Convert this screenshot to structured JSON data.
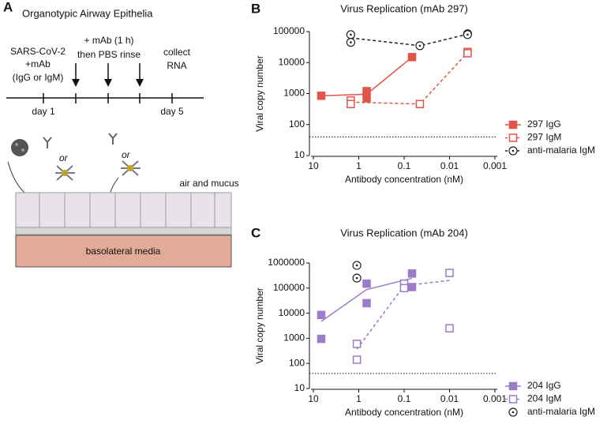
{
  "panel_a": {
    "letter": "A",
    "title": "Organotypic Airway Epithelia",
    "infection": [
      "SARS-CoV-2",
      "+mAb",
      "(IgG or IgM)"
    ],
    "treatment": [
      "+ mAb (1 h)",
      "then PBS rinse"
    ],
    "collect": [
      "collect",
      "RNA"
    ],
    "day_start": "day 1",
    "day_end": "day 5",
    "or": "or",
    "air": "air and mucus",
    "media": "basolateral media"
  },
  "chart_data": [
    {
      "type": "scatter",
      "letter": "B",
      "title": "Virus Replication (mAb 297)",
      "xlabel": "Antibody concentration (nM)",
      "ylabel": "Viral copy number",
      "log_x": true,
      "log_y": true,
      "xlim": [
        10,
        0.001
      ],
      "ylim": [
        10,
        100000
      ],
      "xticks": [
        10,
        1,
        0.1,
        0.01,
        0.001
      ],
      "yticks": [
        10,
        100,
        1000,
        10000,
        100000
      ],
      "reference_line": 40,
      "series": [
        {
          "name": "297 IgG",
          "color": "#e0554a",
          "marker": "square",
          "filled": true,
          "line": "solid",
          "x": [
            6.7,
            0.67,
            0.67,
            0.067
          ],
          "values": [
            850,
            1200,
            700,
            15000
          ]
        },
        {
          "name": "297 IgM",
          "color": "#e0554a",
          "marker": "square",
          "filled": false,
          "line": "dashed",
          "x": [
            1.5,
            1.5,
            0.045,
            0.004,
            0.004
          ],
          "values": [
            600,
            460,
            460,
            22000,
            20000
          ]
        },
        {
          "name": "anti-malaria IgM",
          "color": "#222222",
          "marker": "circle-dot",
          "filled": false,
          "line": "dashed",
          "x": [
            1.5,
            1.5,
            0.045,
            0.004,
            0.004
          ],
          "values": [
            80000,
            45000,
            35000,
            85000,
            80000
          ]
        }
      ]
    },
    {
      "type": "scatter",
      "letter": "C",
      "title": "Virus Replication (mAb 204)",
      "xlabel": "Antibody concentration (nM)",
      "ylabel": "Viral copy number",
      "log_x": true,
      "log_y": true,
      "xlim": [
        10,
        0.001
      ],
      "ylim": [
        10,
        1000000
      ],
      "xticks": [
        10,
        1,
        0.1,
        0.01,
        0.001
      ],
      "yticks": [
        10,
        100,
        1000,
        10000,
        100000,
        1000000
      ],
      "reference_line": 40,
      "series": [
        {
          "name": "204 IgG",
          "color": "#9a7cc8",
          "marker": "square",
          "filled": true,
          "line": "solid",
          "x": [
            6.7,
            6.7,
            0.67,
            0.67,
            0.067,
            0.067
          ],
          "values": [
            8500,
            950,
            150000,
            25000,
            380000,
            110000
          ]
        },
        {
          "name": "204 IgM",
          "color": "#9a7cc8",
          "marker": "square",
          "filled": false,
          "line": "dashed",
          "x": [
            1.1,
            1.1,
            0.1,
            0.1,
            0.01,
            0.01
          ],
          "values": [
            600,
            140,
            150000,
            100000,
            400000,
            2500
          ]
        },
        {
          "name": "anti-malaria IgM",
          "color": "#222222",
          "marker": "circle-dot",
          "filled": false,
          "line": "none",
          "x": [
            1.1,
            1.1
          ],
          "values": [
            800000,
            250000
          ]
        }
      ]
    }
  ]
}
